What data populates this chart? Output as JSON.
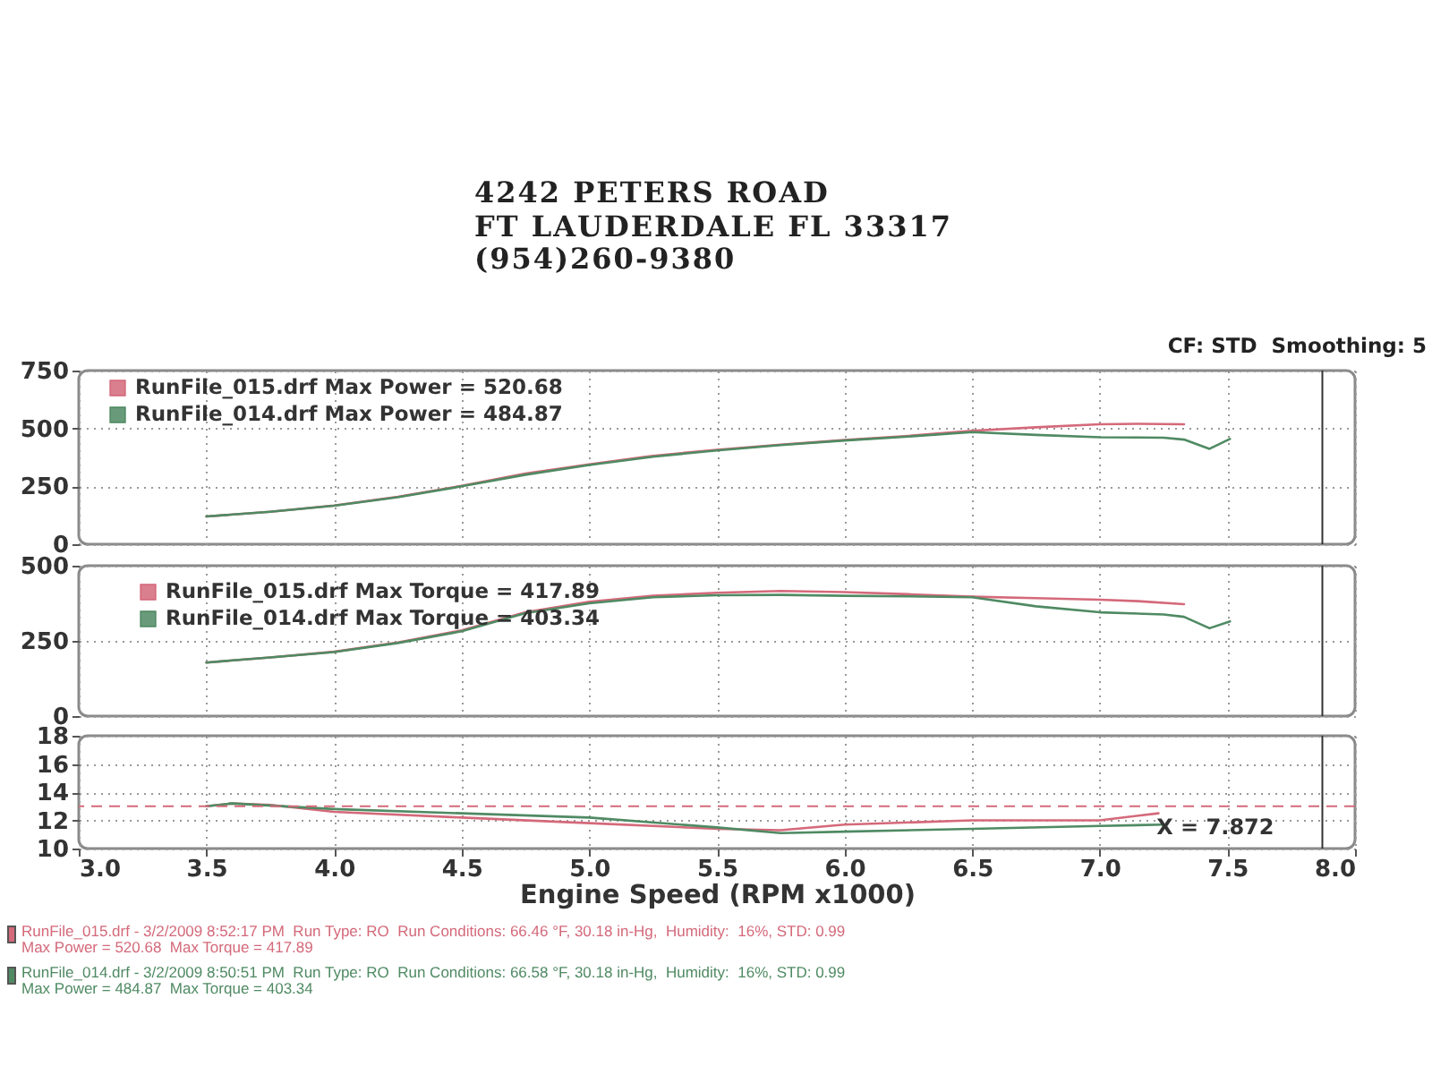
{
  "chart_data": [
    {
      "type": "other",
      "annotations": [
        "4242 PETERS ROAD",
        "FT LAUDERDALE FL 33317",
        "(954)260-9380"
      ]
    },
    {
      "type": "line",
      "series": [
        {
          "name": "RunFile_015.drf Max Power = 520.68",
          "color": "#d4697a",
          "x": [
            3.5,
            3.75,
            4.0,
            4.25,
            4.5,
            4.75,
            5.0,
            5.25,
            5.5,
            5.75,
            6.0,
            6.25,
            6.5,
            6.75,
            7.0,
            7.15,
            7.33
          ],
          "values": [
            120,
            140,
            167,
            205,
            252,
            305,
            345,
            382,
            408,
            430,
            450,
            468,
            490,
            505,
            518,
            520,
            518
          ]
        },
        {
          "name": "RunFile_014.drf Max Power = 484.87",
          "color": "#4f8a63",
          "x": [
            3.5,
            3.75,
            4.0,
            4.25,
            4.5,
            4.75,
            5.0,
            5.25,
            5.5,
            5.75,
            6.0,
            6.25,
            6.5,
            6.75,
            7.0,
            7.25,
            7.33,
            7.43,
            7.51
          ],
          "values": [
            120,
            140,
            166,
            203,
            250,
            300,
            342,
            378,
            405,
            428,
            448,
            465,
            484,
            472,
            462,
            460,
            452,
            412,
            455
          ]
        }
      ],
      "xlim": [
        3,
        8
      ],
      "xticks": [
        3,
        3.5,
        4,
        4.5,
        5,
        5.5,
        6,
        6.5,
        7,
        7.5,
        8
      ],
      "ylim": [
        0,
        750
      ],
      "yticks": [
        0,
        250,
        500,
        750
      ],
      "grid": true,
      "legend": "top left",
      "tick_labels": "y",
      "ref_lines": [
        {
          "axis": "x",
          "value": 7.872,
          "color": "#333333"
        }
      ],
      "annotations": [
        "CF: STD  Smoothing: 5"
      ]
    },
    {
      "type": "line",
      "series": [
        {
          "name": "RunFile_015.drf Max Torque = 417.89",
          "color": "#d4697a",
          "x": [
            3.5,
            3.75,
            4.0,
            4.25,
            4.5,
            4.75,
            5.0,
            5.25,
            5.5,
            5.75,
            6.0,
            6.25,
            6.5,
            6.75,
            7.0,
            7.15,
            7.33
          ],
          "values": [
            178,
            195,
            214,
            245,
            285,
            345,
            380,
            400,
            410,
            416,
            412,
            405,
            397,
            392,
            387,
            382,
            372
          ]
        },
        {
          "name": "RunFile_014.drf Max Torque = 403.34",
          "color": "#4f8a63",
          "x": [
            3.5,
            3.75,
            4.0,
            4.25,
            4.5,
            4.75,
            5.0,
            5.25,
            5.5,
            5.75,
            6.0,
            6.25,
            6.5,
            6.75,
            7.0,
            7.25,
            7.33,
            7.43,
            7.51
          ],
          "values": [
            178,
            195,
            213,
            243,
            282,
            342,
            375,
            395,
            402,
            403,
            400,
            398,
            395,
            365,
            345,
            338,
            330,
            292,
            315
          ]
        }
      ],
      "xlim": [
        3,
        8
      ],
      "xticks": [
        3,
        3.5,
        4,
        4.5,
        5,
        5.5,
        6,
        6.5,
        7,
        7.5,
        8
      ],
      "ylim": [
        0,
        500
      ],
      "yticks": [
        0,
        250,
        500
      ],
      "grid": true,
      "legend": "top left",
      "tick_labels": "y",
      "ref_lines": [
        {
          "axis": "x",
          "value": 7.872,
          "color": "#333333"
        }
      ]
    },
    {
      "type": "line",
      "series": [
        {
          "color": "#d4697a",
          "x": [
            3.5,
            3.6,
            3.75,
            4.0,
            4.5,
            5.0,
            5.5,
            5.75,
            6.0,
            6.5,
            7.0,
            7.23
          ],
          "values": [
            13.0,
            13.2,
            13.1,
            12.6,
            12.2,
            11.8,
            11.4,
            11.3,
            11.7,
            12.0,
            12.0,
            12.5
          ]
        },
        {
          "color": "#4f8a63",
          "x": [
            3.5,
            3.6,
            4.0,
            4.5,
            5.0,
            5.5,
            5.75,
            6.0,
            6.5,
            7.0,
            7.25
          ],
          "values": [
            13.0,
            13.2,
            12.8,
            12.5,
            12.2,
            11.5,
            11.1,
            11.2,
            11.4,
            11.6,
            11.7
          ]
        }
      ],
      "xlim": [
        3,
        8
      ],
      "xticks": [
        {
          "value": 3,
          "label": "3.0"
        },
        {
          "value": 3.5,
          "label": "3.5"
        },
        {
          "value": 4,
          "label": "4.0"
        },
        {
          "value": 4.5,
          "label": "4.5"
        },
        {
          "value": 5,
          "label": "5.0"
        },
        {
          "value": 5.5,
          "label": "5.5"
        },
        {
          "value": 6,
          "label": "6.0"
        },
        {
          "value": 6.5,
          "label": "6.5"
        },
        {
          "value": 7,
          "label": "7.0"
        },
        {
          "value": 7.5,
          "label": "7.5"
        },
        {
          "value": 8,
          "label": "8.0"
        }
      ],
      "ylim": [
        10,
        18
      ],
      "yticks": [
        10,
        12,
        14,
        16,
        18
      ],
      "grid": true,
      "xlabel": "Engine Speed (RPM x1000)",
      "ref_lines": [
        {
          "axis": "y",
          "value": 13,
          "color": "#d4697a",
          "line_style": "dashed"
        },
        {
          "axis": "x",
          "value": 7.872,
          "label": "X = 7.872",
          "color": "#333333"
        }
      ],
      "annotations": [
        "RunFile_015.drf - 3/2/2009 8:52:17 PM  Run Type: RO  Run Conditions: 66.46 °F, 30.18 in-Hg,  Humidity:  16%, STD: 0.99",
        "Max Power = 520.68  Max Torque = 417.89",
        "RunFile_014.drf - 3/2/2009 8:50:51 PM  Run Type: RO  Run Conditions: 66.58 °F, 30.18 in-Hg,  Humidity:  16%, STD: 0.99",
        "Max Power = 484.87  Max Torque = 403.34"
      ]
    }
  ]
}
